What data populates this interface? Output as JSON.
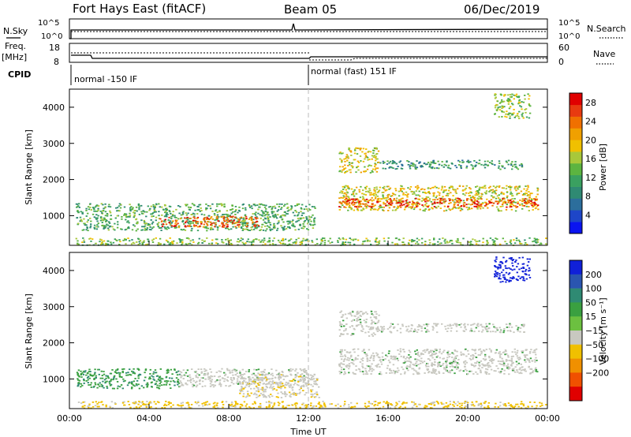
{
  "header": {
    "title": "Fort Hays East (fitACF)",
    "beam": "Beam 05",
    "date": "06/Dec/2019"
  },
  "top_panels": {
    "nsky_label": "N.Sky",
    "nsearch_label": "N.Search",
    "freq_label": "Freq.",
    "freq_unit": "[MHz]",
    "nave_label": "Nave",
    "cpid_label": "CPID",
    "counts_left_ticks": [
      "10^5",
      "10^0"
    ],
    "counts_right_ticks": [
      "10^5",
      "10^0"
    ],
    "freq_ticks": [
      "18",
      "8"
    ],
    "nave_ticks": [
      "60",
      "0"
    ],
    "cpid_segments": [
      {
        "start": 0,
        "end": 12,
        "label": "normal -150 IF"
      },
      {
        "start": 12,
        "end": 24,
        "label": "normal (fast) 151 IF"
      }
    ]
  },
  "chart_data": [
    {
      "type": "heatmap",
      "name": "Power",
      "ylabel": "Slant Range [km]",
      "xlabel": "Time UT",
      "x_range_hours": [
        0,
        24
      ],
      "ylim": [
        180,
        4500
      ],
      "x_ticks": [
        "00:00",
        "04:00",
        "08:00",
        "12:00",
        "16:00",
        "20:00",
        "00:00"
      ],
      "y_ticks": [
        1000,
        2000,
        3000,
        4000
      ],
      "colorbar": {
        "label": "Power [dB]",
        "ticks": [
          4,
          8,
          12,
          16,
          20,
          24,
          28
        ],
        "range": [
          0,
          30
        ],
        "colors": [
          "#0a14f0",
          "#1e46c8",
          "#2c6e9c",
          "#2f8a73",
          "#3aa060",
          "#5cb440",
          "#a8c83a",
          "#f0c000",
          "#f0a000",
          "#f07000",
          "#e83a10",
          "#e00000"
        ]
      },
      "features": [
        {
          "start": 0.3,
          "end": 12.3,
          "range_lo": 600,
          "range_hi": 1350,
          "level": 12
        },
        {
          "start": 4.5,
          "end": 9.5,
          "range_lo": 700,
          "range_hi": 1000,
          "level": 26
        },
        {
          "start": 13.5,
          "end": 23.5,
          "range_lo": 1150,
          "range_hi": 1850,
          "level": 18
        },
        {
          "start": 13.5,
          "end": 23.5,
          "range_lo": 1250,
          "range_hi": 1500,
          "level": 27
        },
        {
          "start": 13.5,
          "end": 15.5,
          "range_lo": 2200,
          "range_hi": 2900,
          "level": 18
        },
        {
          "start": 15.5,
          "end": 22.8,
          "range_lo": 2300,
          "range_hi": 2550,
          "level": 10
        },
        {
          "start": 21.3,
          "end": 23.1,
          "range_lo": 3700,
          "range_hi": 4400,
          "level": 15
        },
        {
          "start": 0.3,
          "end": 23.9,
          "range_lo": 200,
          "range_hi": 400,
          "level": 14
        }
      ]
    },
    {
      "type": "heatmap",
      "name": "Velocity",
      "ylabel": "Slant Range [km]",
      "xlabel": "Time UT",
      "x_range_hours": [
        0,
        24
      ],
      "ylim": [
        180,
        4500
      ],
      "x_ticks": [
        "00:00",
        "04:00",
        "08:00",
        "12:00",
        "16:00",
        "20:00",
        "00:00"
      ],
      "y_ticks": [
        1000,
        2000,
        3000,
        4000
      ],
      "colorbar": {
        "label": "Velocity [m s⁻¹]",
        "ticks": [
          200,
          100,
          50,
          15,
          -15,
          -50,
          -100,
          -200
        ],
        "colors": [
          "#1020d8",
          "#2a55b0",
          "#2f8a73",
          "#3aa040",
          "#6cc040",
          "#c8c8c0",
          "#f0c000",
          "#f09000",
          "#f05000",
          "#e00000"
        ]
      },
      "features": [
        {
          "start": 0.3,
          "end": 5.5,
          "range_lo": 750,
          "range_hi": 1300,
          "velocity": 40
        },
        {
          "start": 5.5,
          "end": 12.3,
          "range_lo": 800,
          "range_hi": 1300,
          "velocity": 0
        },
        {
          "start": 8.5,
          "end": 12.5,
          "range_lo": 500,
          "range_hi": 1150,
          "velocity": -40
        },
        {
          "start": 13.5,
          "end": 23.5,
          "range_lo": 1150,
          "range_hi": 1850,
          "velocity": 0
        },
        {
          "start": 13.5,
          "end": 15.5,
          "range_lo": 2200,
          "range_hi": 2900,
          "velocity": 0
        },
        {
          "start": 15.5,
          "end": 22.8,
          "range_lo": 2300,
          "range_hi": 2550,
          "velocity": 0
        },
        {
          "start": 21.3,
          "end": 23.1,
          "range_lo": 3700,
          "range_hi": 4400,
          "velocity": 230
        },
        {
          "start": 0.3,
          "end": 23.9,
          "range_lo": 200,
          "range_hi": 400,
          "velocity": -60
        }
      ]
    }
  ]
}
